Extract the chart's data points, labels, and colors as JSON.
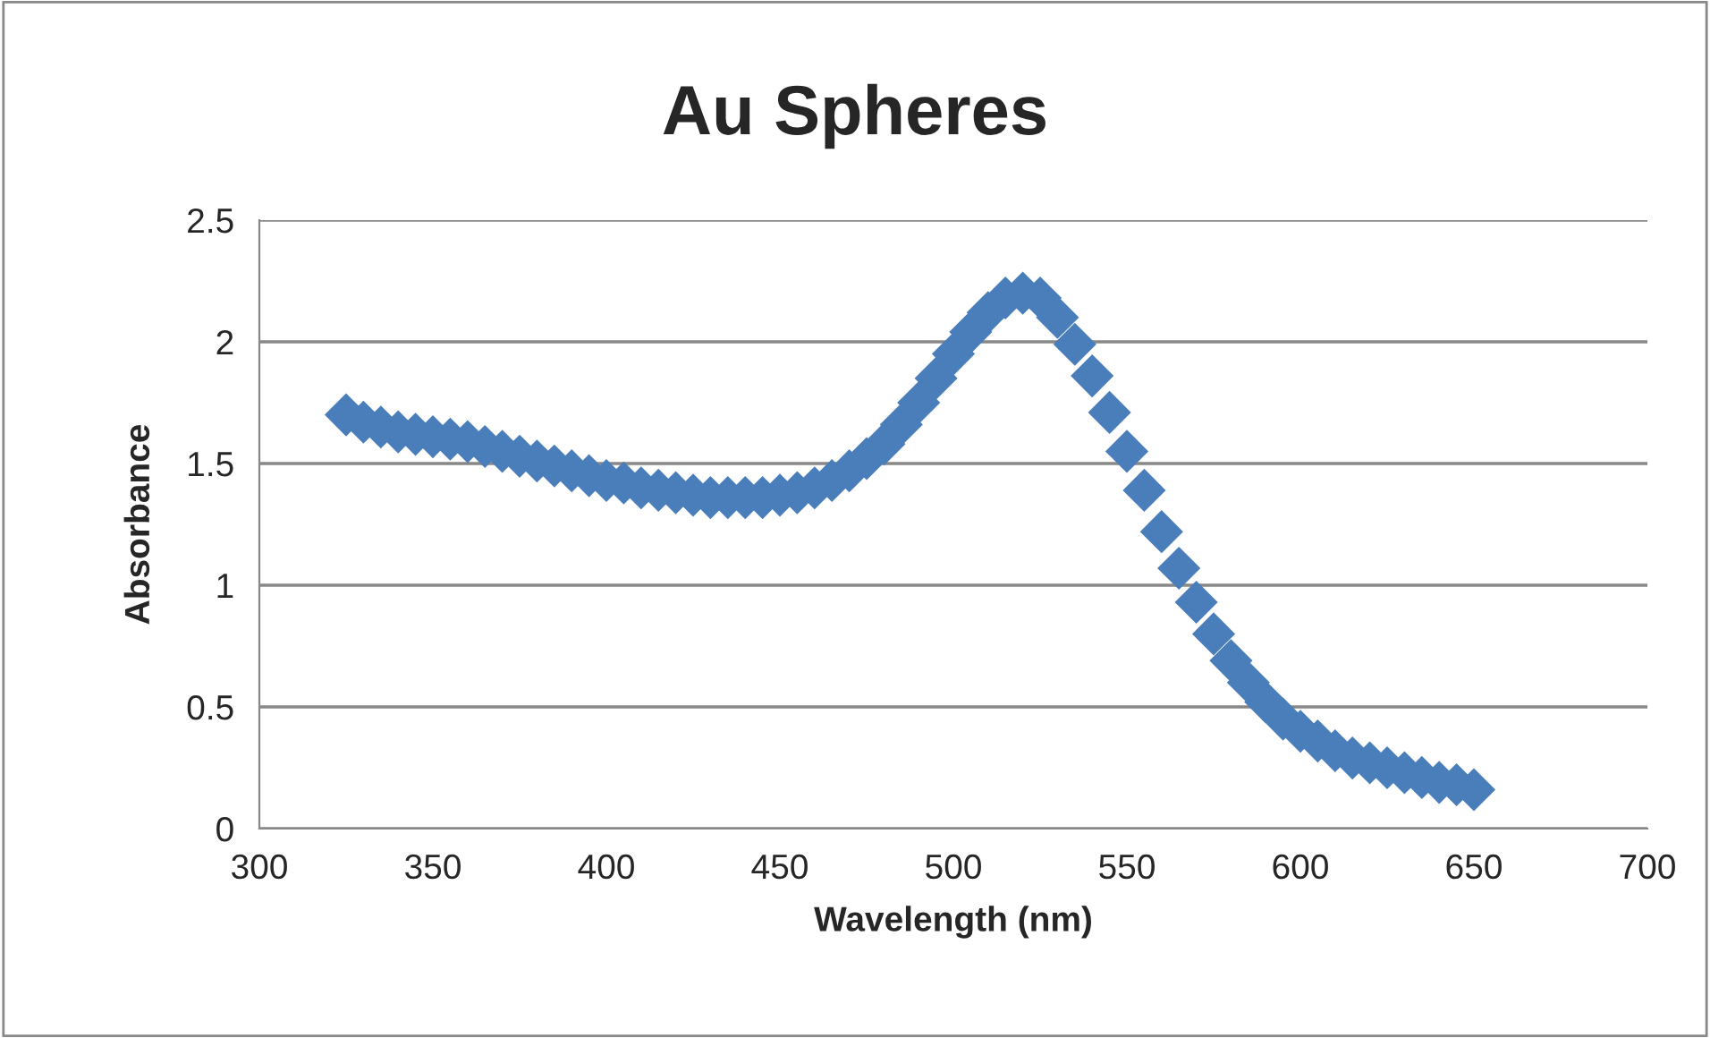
{
  "chart_data": {
    "type": "scatter",
    "title": "Au Spheres",
    "xlabel": "Wavelength (nm)",
    "ylabel": "Absorbance",
    "x": [
      325,
      330,
      335,
      340,
      345,
      350,
      355,
      360,
      365,
      370,
      375,
      380,
      385,
      390,
      395,
      400,
      405,
      410,
      415,
      420,
      425,
      430,
      435,
      440,
      445,
      450,
      455,
      460,
      465,
      470,
      475,
      480,
      485,
      490,
      495,
      500,
      505,
      510,
      515,
      520,
      525,
      530,
      535,
      540,
      545,
      550,
      555,
      560,
      565,
      570,
      575,
      580,
      585,
      590,
      595,
      600,
      605,
      610,
      615,
      620,
      625,
      630,
      635,
      640,
      645,
      650
    ],
    "series": [
      {
        "color": "#4a7ebb",
        "values": [
          1.7,
          1.67,
          1.65,
          1.63,
          1.62,
          1.61,
          1.6,
          1.59,
          1.57,
          1.55,
          1.53,
          1.51,
          1.49,
          1.47,
          1.45,
          1.43,
          1.42,
          1.4,
          1.39,
          1.38,
          1.37,
          1.36,
          1.36,
          1.36,
          1.36,
          1.37,
          1.38,
          1.4,
          1.43,
          1.47,
          1.52,
          1.58,
          1.66,
          1.75,
          1.85,
          1.95,
          2.04,
          2.12,
          2.18,
          2.2,
          2.18,
          2.1,
          1.99,
          1.86,
          1.71,
          1.55,
          1.39,
          1.22,
          1.07,
          0.93,
          0.8,
          0.69,
          0.6,
          0.52,
          0.45,
          0.4,
          0.36,
          0.32,
          0.29,
          0.27,
          0.25,
          0.23,
          0.21,
          0.19,
          0.18,
          0.16
        ]
      }
    ],
    "xlim": [
      300,
      700
    ],
    "xticks": [
      300,
      350,
      400,
      450,
      500,
      550,
      600,
      650,
      700
    ],
    "ylim": [
      0,
      2.5
    ],
    "yticks": [
      0,
      0.5,
      1,
      1.5,
      2,
      2.5
    ],
    "grid": "y",
    "marker": "diamond",
    "legend": false
  }
}
